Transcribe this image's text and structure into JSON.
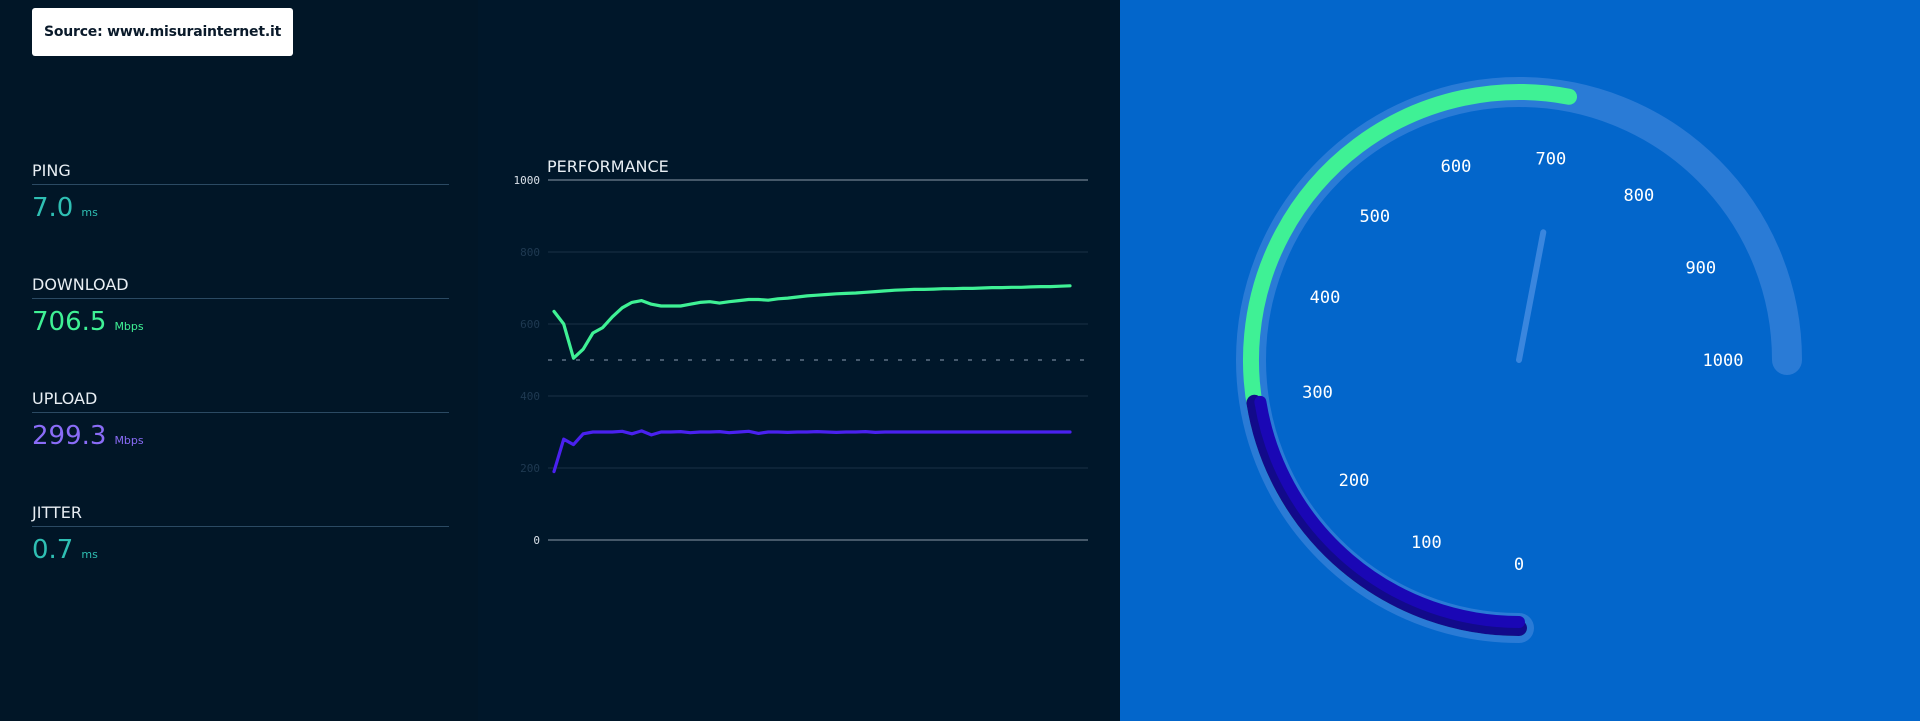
{
  "source": {
    "label": "Source: www.misurainternet.it"
  },
  "metrics": {
    "ping": {
      "label": "PING",
      "value": "7.0",
      "unit": "ms"
    },
    "download": {
      "label": "DOWNLOAD",
      "value": "706.5",
      "unit": "Mbps"
    },
    "upload": {
      "label": "UPLOAD",
      "value": "299.3",
      "unit": "Mbps"
    },
    "jitter": {
      "label": "JITTER",
      "value": "0.7",
      "unit": "ms"
    }
  },
  "performance": {
    "title": "PERFORMANCE"
  },
  "chart_data": [
    {
      "type": "line",
      "title": "PERFORMANCE",
      "ylim": [
        0,
        1000
      ],
      "yticks": [
        "0",
        "200",
        "400",
        "600",
        "800",
        "1000"
      ],
      "reference_line": 500,
      "grid": true,
      "series": [
        {
          "color": "#3ff195",
          "values": [
            635,
            600,
            505,
            530,
            575,
            590,
            620,
            645,
            660,
            665,
            655,
            650,
            650,
            650,
            655,
            660,
            662,
            658,
            662,
            665,
            668,
            668,
            666,
            670,
            672,
            675,
            678,
            680,
            682,
            684,
            685,
            686,
            688,
            690,
            692,
            694,
            695,
            696,
            696,
            697,
            698,
            698,
            699,
            699,
            700,
            701,
            701,
            702,
            702,
            703,
            704,
            704,
            705,
            706
          ]
        },
        {
          "color": "#4a21ef",
          "values": [
            190,
            280,
            265,
            295,
            300,
            300,
            300,
            302,
            295,
            303,
            292,
            300,
            300,
            301,
            298,
            300,
            300,
            301,
            298,
            300,
            302,
            296,
            300,
            300,
            299,
            300,
            300,
            301,
            300,
            299,
            300,
            300,
            301,
            299,
            300,
            300,
            300,
            300,
            300,
            300,
            300,
            300,
            300,
            300,
            300,
            300,
            300,
            300,
            300,
            300,
            300,
            300,
            300,
            300
          ]
        }
      ]
    },
    {
      "type": "gauge",
      "range": [
        0,
        1000
      ],
      "ticks": [
        "0",
        "100",
        "200",
        "300",
        "400",
        "500",
        "600",
        "700",
        "800",
        "900",
        "1000"
      ],
      "download_value": 706.5,
      "upload_value": 299.3,
      "needle_value": 706.5,
      "colors": {
        "track": "#2a7bd6",
        "download": "#3ff195",
        "upload": "#1a07b5",
        "upload_outline": "#120a8a",
        "needle": "#3a86de"
      }
    }
  ]
}
